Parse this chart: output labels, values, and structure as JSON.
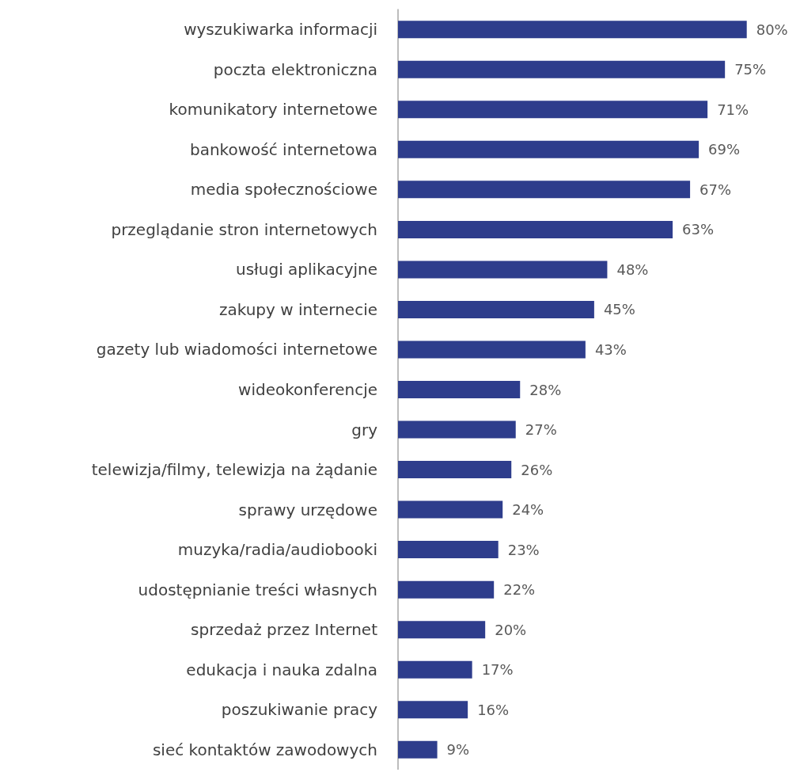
{
  "chart_data": {
    "type": "bar",
    "orientation": "horizontal",
    "categories": [
      "wyszukiwarka informacji",
      "poczta elektroniczna",
      "komunikatory internetowe",
      "bankowość internetowa",
      "media społecznościowe",
      "przeglądanie stron internetowych",
      "usługi aplikacyjne",
      "zakupy w internecie",
      "gazety lub wiadomości internetowe",
      "wideokonferencje",
      "gry",
      "telewizja/filmy, telewizja na żądanie",
      "sprawy urzędowe",
      "muzyka/radia/audiobooki",
      "udostępnianie treści własnych",
      "sprzedaż przez Internet",
      "edukacja i nauka zdalna",
      "poszukiwanie pracy",
      "sieć kontaktów zawodowych"
    ],
    "values": [
      80,
      75,
      71,
      69,
      67,
      63,
      48,
      45,
      43,
      28,
      27,
      26,
      24,
      23,
      22,
      20,
      17,
      16,
      9
    ],
    "value_labels": [
      "80%",
      "75%",
      "71%",
      "69%",
      "67%",
      "63%",
      "48%",
      "45%",
      "43%",
      "28%",
      "27%",
      "26%",
      "24%",
      "23%",
      "22%",
      "20%",
      "17%",
      "16%",
      "9%"
    ],
    "color": "#2e3d8c"
  }
}
